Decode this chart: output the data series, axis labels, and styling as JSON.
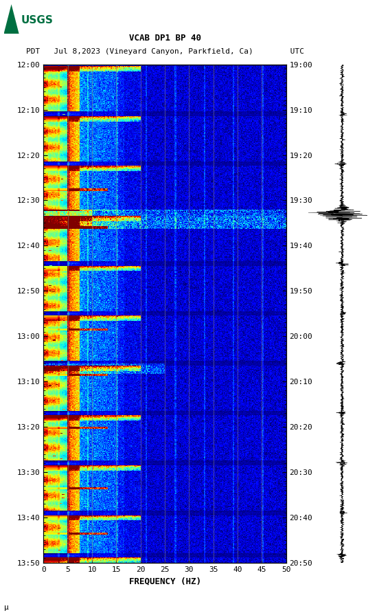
{
  "title_line1": "VCAB DP1 BP 40",
  "title_line2_left": "PDT",
  "title_line2_mid": "Jul 8,2023 (Vineyard Canyon, Parkfield, Ca)",
  "title_line2_right": "UTC",
  "xlabel": "FREQUENCY (HZ)",
  "freq_min": 0,
  "freq_max": 50,
  "pdt_ticks": [
    "12:00",
    "12:10",
    "12:20",
    "12:30",
    "12:40",
    "12:50",
    "13:00",
    "13:10",
    "13:20",
    "13:30",
    "13:40",
    "13:50"
  ],
  "utc_ticks": [
    "19:00",
    "19:10",
    "19:20",
    "19:30",
    "19:40",
    "19:50",
    "20:00",
    "20:10",
    "20:20",
    "20:30",
    "20:40",
    "20:50"
  ],
  "freq_ticks": [
    0,
    5,
    10,
    15,
    20,
    25,
    30,
    35,
    40,
    45,
    50
  ],
  "vertical_lines_freq": [
    5,
    10,
    15,
    20,
    25,
    30,
    35,
    40,
    45
  ],
  "background_color": "#ffffff",
  "usgs_logo_color": "#006f41",
  "seed": 42,
  "n_freq": 300,
  "n_time": 660
}
